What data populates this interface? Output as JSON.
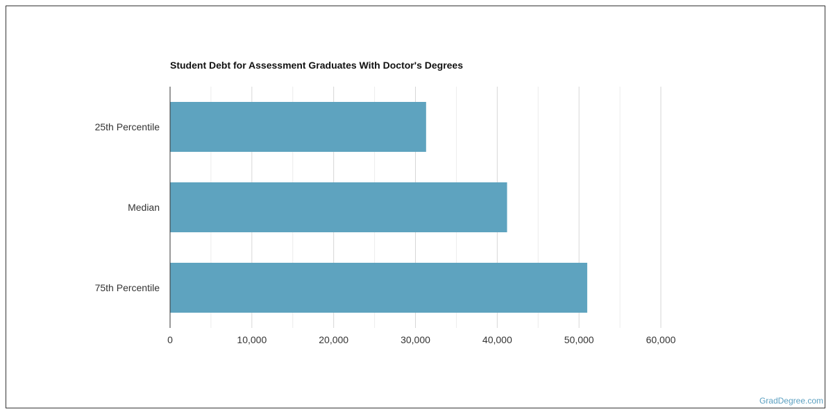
{
  "chart_data": {
    "type": "bar",
    "orientation": "horizontal",
    "title": "Student Debt for Assessment Graduates With Doctor's Degrees",
    "categories": [
      "25th Percentile",
      "Median",
      "75th Percentile"
    ],
    "values": [
      31300,
      41200,
      51000
    ],
    "xlim": [
      0,
      60000
    ],
    "xticks": [
      "0",
      "10,000",
      "20,000",
      "30,000",
      "40,000",
      "50,000",
      "60,000"
    ],
    "grid": true,
    "bar_color": "#5ea3bf"
  },
  "watermark": "GradDegree.com"
}
